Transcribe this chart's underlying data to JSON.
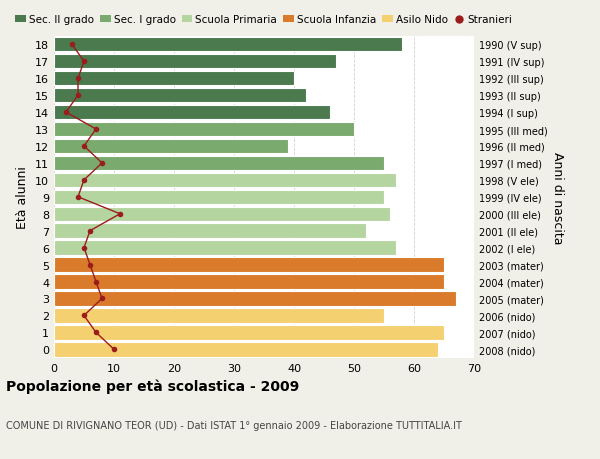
{
  "ages": [
    18,
    17,
    16,
    15,
    14,
    13,
    12,
    11,
    10,
    9,
    8,
    7,
    6,
    5,
    4,
    3,
    2,
    1,
    0
  ],
  "right_labels": [
    "1990 (V sup)",
    "1991 (IV sup)",
    "1992 (III sup)",
    "1993 (II sup)",
    "1994 (I sup)",
    "1995 (III med)",
    "1996 (II med)",
    "1997 (I med)",
    "1998 (V ele)",
    "1999 (IV ele)",
    "2000 (III ele)",
    "2001 (II ele)",
    "2002 (I ele)",
    "2003 (mater)",
    "2004 (mater)",
    "2005 (mater)",
    "2006 (nido)",
    "2007 (nido)",
    "2008 (nido)"
  ],
  "bar_values": [
    58,
    47,
    40,
    42,
    46,
    50,
    39,
    55,
    57,
    55,
    56,
    52,
    57,
    65,
    65,
    67,
    55,
    65,
    64
  ],
  "bar_colors": [
    "#4a7a4e",
    "#4a7a4e",
    "#4a7a4e",
    "#4a7a4e",
    "#4a7a4e",
    "#7aaa6e",
    "#7aaa6e",
    "#7aaa6e",
    "#b5d5a0",
    "#b5d5a0",
    "#b5d5a0",
    "#b5d5a0",
    "#b5d5a0",
    "#d97b2a",
    "#d97b2a",
    "#d97b2a",
    "#f5d070",
    "#f5d070",
    "#f5d070"
  ],
  "stranieri_values": [
    3,
    5,
    4,
    4,
    2,
    7,
    5,
    8,
    5,
    4,
    11,
    6,
    5,
    6,
    7,
    8,
    5,
    7,
    10
  ],
  "stranieri_color": "#9b1c1c",
  "legend_labels": [
    "Sec. II grado",
    "Sec. I grado",
    "Scuola Primaria",
    "Scuola Infanzia",
    "Asilo Nido",
    "Stranieri"
  ],
  "legend_colors": [
    "#4a7a4e",
    "#7aaa6e",
    "#b5d5a0",
    "#d97b2a",
    "#f5d070",
    "#9b1c1c"
  ],
  "ylabel_left": "Età alunni",
  "ylabel_right": "Anni di nascita",
  "title": "Popolazione per età scolastica - 2009",
  "subtitle": "COMUNE DI RIVIGNANO TEOR (UD) - Dati ISTAT 1° gennaio 2009 - Elaborazione TUTTITALIA.IT",
  "xlim": [
    0,
    70
  ],
  "xticks": [
    0,
    10,
    20,
    30,
    40,
    50,
    60,
    70
  ],
  "figure_bg": "#f0f0e8",
  "plot_bg": "#ffffff"
}
